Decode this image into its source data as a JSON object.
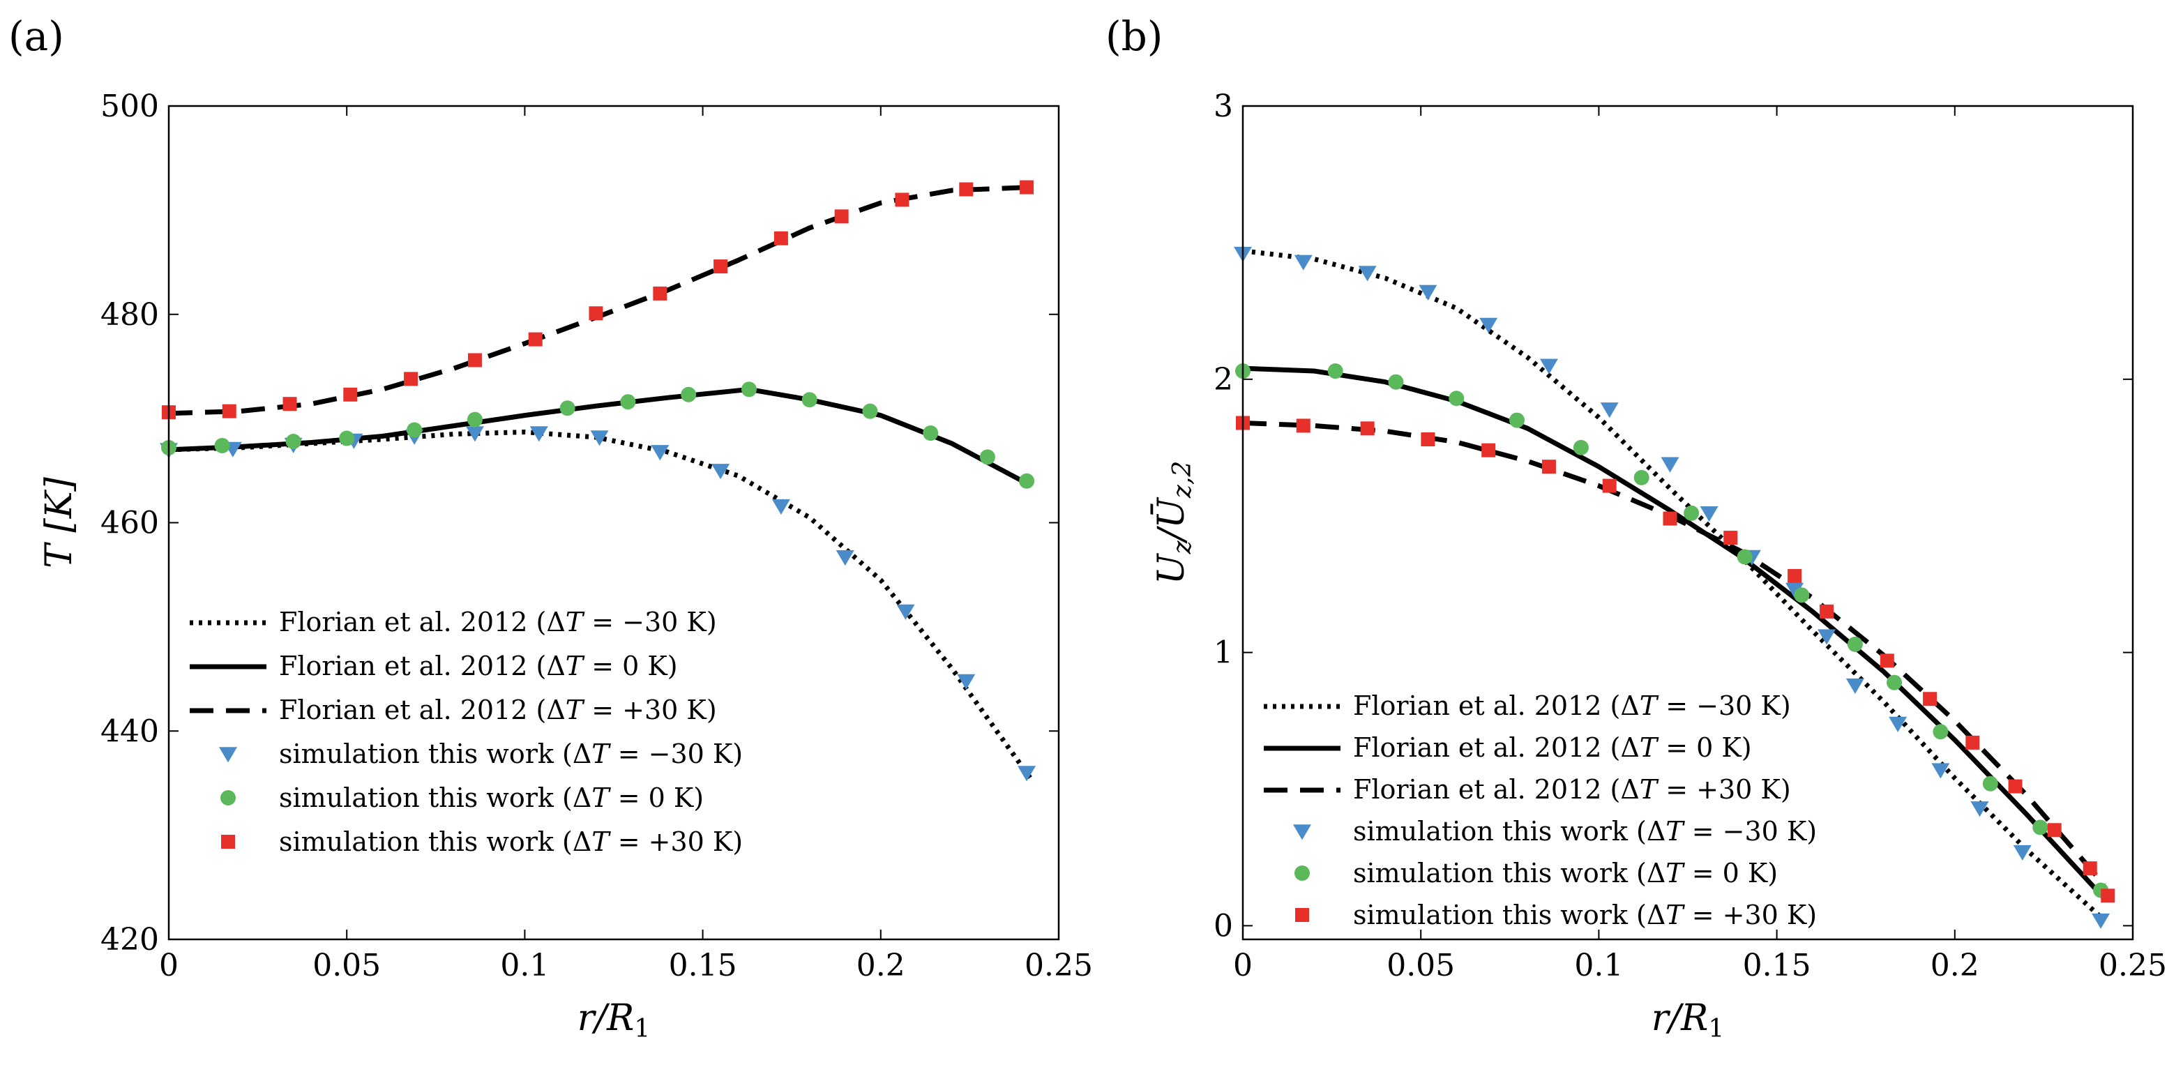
{
  "chart_data": [
    {
      "panel": "(a)",
      "type": "line",
      "xlabel": "r/R_1",
      "ylabel": "T [K]",
      "xlim": [
        0,
        0.25
      ],
      "ylim": [
        420,
        500
      ],
      "xticks": [
        0,
        0.05,
        0.1,
        0.15,
        0.2,
        0.25
      ],
      "xtick_labels": [
        "0",
        "0.05",
        "0.1",
        "0.15",
        "0.2",
        "0.25"
      ],
      "yticks": [
        420,
        440,
        460,
        480,
        500
      ],
      "ytick_labels": [
        "420",
        "440",
        "460",
        "480",
        "500"
      ],
      "legend_position": "bottom-left",
      "lines": [
        {
          "name": "Florian et al. 2012 (ΔT = −30 K)",
          "style": "dotted",
          "x": [
            0,
            0.02,
            0.04,
            0.06,
            0.08,
            0.1,
            0.12,
            0.14,
            0.16,
            0.18,
            0.2,
            0.22,
            0.242
          ],
          "y": [
            467,
            467.2,
            467.6,
            468,
            468.5,
            468.7,
            468.2,
            466.8,
            464.5,
            460.5,
            454.5,
            446,
            435.5
          ]
        },
        {
          "name": "Florian et al. 2012 (ΔT = 0 K)",
          "style": "solid",
          "x": [
            0,
            0.02,
            0.04,
            0.06,
            0.08,
            0.1,
            0.12,
            0.14,
            0.163,
            0.18,
            0.2,
            0.22,
            0.242
          ],
          "y": [
            467,
            467.3,
            467.7,
            468.3,
            469.3,
            470.3,
            471.2,
            472,
            472.8,
            471.8,
            470.3,
            467.6,
            463.6
          ]
        },
        {
          "name": "Florian et al. 2012 (ΔT = +30 K)",
          "style": "dashed",
          "x": [
            0,
            0.02,
            0.04,
            0.06,
            0.08,
            0.1,
            0.12,
            0.14,
            0.16,
            0.18,
            0.2,
            0.22,
            0.242
          ],
          "y": [
            470.5,
            470.7,
            471.4,
            472.8,
            474.8,
            477.2,
            479.7,
            482.3,
            485.2,
            488.3,
            490.7,
            491.9,
            492.2
          ]
        }
      ],
      "scatter": [
        {
          "name": "simulation this work (ΔT = −30 K)",
          "marker": "triangle-down",
          "color": "#4a8cc9",
          "x": [
            0,
            0.018,
            0.035,
            0.052,
            0.069,
            0.086,
            0.104,
            0.121,
            0.138,
            0.155,
            0.172,
            0.19,
            0.207,
            0.224,
            0.241
          ],
          "y": [
            467,
            467.1,
            467.5,
            467.9,
            468.3,
            468.6,
            468.6,
            468.2,
            466.8,
            465,
            461.6,
            456.7,
            451.5,
            444.8,
            436
          ]
        },
        {
          "name": "simulation this work (ΔT = 0 K)",
          "marker": "circle",
          "color": "#5bb85b",
          "x": [
            0,
            0.015,
            0.035,
            0.05,
            0.069,
            0.086,
            0.112,
            0.129,
            0.146,
            0.163,
            0.18,
            0.197,
            0.214,
            0.23,
            0.241
          ],
          "y": [
            467.2,
            467.4,
            467.8,
            468.1,
            468.9,
            469.9,
            471,
            471.6,
            472.3,
            472.8,
            471.8,
            470.7,
            468.6,
            466.3,
            464
          ]
        },
        {
          "name": "simulation this work (ΔT = +30 K)",
          "marker": "square",
          "color": "#e8302b",
          "x": [
            0,
            0.017,
            0.034,
            0.051,
            0.068,
            0.086,
            0.103,
            0.12,
            0.138,
            0.155,
            0.172,
            0.189,
            0.206,
            0.224,
            0.241
          ],
          "y": [
            470.6,
            470.7,
            471.4,
            472.3,
            473.8,
            475.6,
            477.6,
            480.1,
            482,
            484.6,
            487.3,
            489.4,
            491,
            492,
            492.2
          ]
        }
      ]
    },
    {
      "panel": "(b)",
      "type": "line",
      "xlabel": "r/R_1",
      "ylabel": "U_z/Ū_z,2",
      "xlim": [
        0,
        0.25
      ],
      "ylim": [
        -0.05,
        3
      ],
      "xticks": [
        0,
        0.05,
        0.1,
        0.15,
        0.2,
        0.25
      ],
      "xtick_labels": [
        "0",
        "0.05",
        "0.1",
        "0.15",
        "0.2",
        "0.25"
      ],
      "yticks": [
        0,
        1,
        2,
        3
      ],
      "ytick_labels": [
        "0",
        "1",
        "2",
        "3"
      ],
      "legend_position": "bottom-left",
      "lines": [
        {
          "name": "Florian et al. 2012 (ΔT = −30 K)",
          "style": "dotted",
          "x": [
            0,
            0.02,
            0.04,
            0.06,
            0.08,
            0.1,
            0.12,
            0.14,
            0.16,
            0.18,
            0.2,
            0.22,
            0.242
          ],
          "y": [
            2.47,
            2.44,
            2.37,
            2.26,
            2.08,
            1.86,
            1.6,
            1.35,
            1.08,
            0.82,
            0.54,
            0.28,
            0.02
          ]
        },
        {
          "name": "Florian et al. 2012 (ΔT = 0 K)",
          "style": "solid",
          "x": [
            0,
            0.02,
            0.04,
            0.06,
            0.08,
            0.1,
            0.12,
            0.14,
            0.16,
            0.18,
            0.2,
            0.22,
            0.242
          ],
          "y": [
            2.04,
            2.03,
            1.99,
            1.92,
            1.82,
            1.68,
            1.52,
            1.35,
            1.15,
            0.93,
            0.68,
            0.41,
            0.1
          ]
        },
        {
          "name": "Florian et al. 2012 (ΔT = +30 K)",
          "style": "dashed",
          "x": [
            0,
            0.02,
            0.04,
            0.06,
            0.08,
            0.1,
            0.12,
            0.14,
            0.16,
            0.18,
            0.2,
            0.22,
            0.242
          ],
          "y": [
            1.84,
            1.83,
            1.81,
            1.77,
            1.7,
            1.61,
            1.5,
            1.37,
            1.2,
            0.99,
            0.75,
            0.48,
            0.15
          ]
        }
      ],
      "scatter": [
        {
          "name": "simulation this work (ΔT = −30 K)",
          "marker": "triangle-down",
          "color": "#4a8cc9",
          "x": [
            0,
            0.017,
            0.035,
            0.052,
            0.069,
            0.086,
            0.103,
            0.12,
            0.131,
            0.143,
            0.155,
            0.164,
            0.172,
            0.184,
            0.196,
            0.207,
            0.219,
            0.241
          ],
          "y": [
            2.46,
            2.43,
            2.39,
            2.32,
            2.2,
            2.05,
            1.89,
            1.69,
            1.51,
            1.35,
            1.23,
            1.06,
            0.88,
            0.74,
            0.57,
            0.43,
            0.27,
            0.02
          ]
        },
        {
          "name": "simulation this work (ΔT = 0 K)",
          "marker": "circle",
          "color": "#5bb85b",
          "x": [
            0,
            0.026,
            0.043,
            0.06,
            0.077,
            0.095,
            0.112,
            0.126,
            0.141,
            0.157,
            0.172,
            0.183,
            0.196,
            0.21,
            0.224,
            0.241
          ],
          "y": [
            2.03,
            2.03,
            1.99,
            1.93,
            1.85,
            1.75,
            1.64,
            1.51,
            1.35,
            1.21,
            1.03,
            0.89,
            0.71,
            0.52,
            0.36,
            0.13
          ]
        },
        {
          "name": "simulation this work (ΔT = +30 K)",
          "marker": "square",
          "color": "#e8302b",
          "x": [
            0,
            0.017,
            0.035,
            0.052,
            0.069,
            0.086,
            0.103,
            0.12,
            0.137,
            0.155,
            0.164,
            0.181,
            0.193,
            0.205,
            0.217,
            0.228,
            0.238,
            0.243
          ],
          "y": [
            1.84,
            1.83,
            1.82,
            1.78,
            1.74,
            1.68,
            1.61,
            1.49,
            1.42,
            1.28,
            1.15,
            0.97,
            0.83,
            0.67,
            0.51,
            0.35,
            0.21,
            0.11
          ]
        }
      ]
    }
  ]
}
